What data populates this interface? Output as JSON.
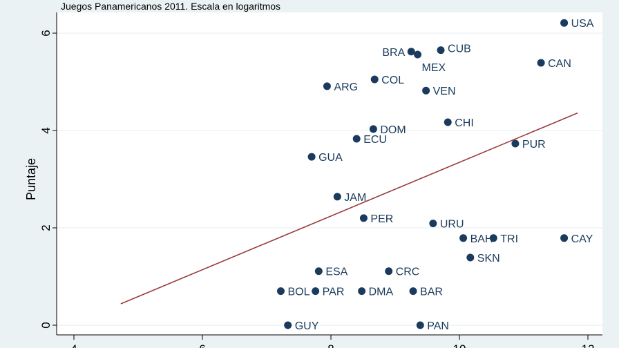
{
  "chart_data": {
    "type": "scatter",
    "title": "Juegos Panamericanos 2011. Escala en logaritmos",
    "ylabel": "Puntaje",
    "xlabel": "",
    "xlim": [
      3.7,
      12.25
    ],
    "ylim": [
      -0.2,
      6.7
    ],
    "xticks": [
      4,
      6,
      8,
      10,
      12
    ],
    "yticks": [
      0,
      2,
      4,
      6
    ],
    "grid": "horizontal",
    "colors": {
      "points": "#1a3b5d",
      "fit": "#9b3a3a",
      "background": "#eaf2f3",
      "plot": "#ffffff"
    },
    "points": [
      {
        "label": "USA",
        "x": 11.63,
        "y": 6.21
      },
      {
        "label": "CAN",
        "x": 11.27,
        "y": 5.39
      },
      {
        "label": "CUB",
        "x": 9.71,
        "y": 5.65
      },
      {
        "label": "BRA",
        "x": 9.25,
        "y": 5.62
      },
      {
        "label": "MEX",
        "x": 9.35,
        "y": 5.56
      },
      {
        "label": "COL",
        "x": 8.68,
        "y": 5.05
      },
      {
        "label": "VEN",
        "x": 9.48,
        "y": 4.82
      },
      {
        "label": "ARG",
        "x": 7.94,
        "y": 4.91
      },
      {
        "label": "CHI",
        "x": 9.82,
        "y": 4.17
      },
      {
        "label": "DOM",
        "x": 8.66,
        "y": 4.03
      },
      {
        "label": "ECU",
        "x": 8.4,
        "y": 3.83
      },
      {
        "label": "PUR",
        "x": 10.87,
        "y": 3.73
      },
      {
        "label": "GUA",
        "x": 7.7,
        "y": 3.46
      },
      {
        "label": "JAM",
        "x": 8.1,
        "y": 2.64
      },
      {
        "label": "PER",
        "x": 8.51,
        "y": 2.2
      },
      {
        "label": "URU",
        "x": 9.59,
        "y": 2.09
      },
      {
        "label": "BAH",
        "x": 10.06,
        "y": 1.79
      },
      {
        "label": "TRI",
        "x": 10.53,
        "y": 1.79
      },
      {
        "label": "CAY",
        "x": 11.63,
        "y": 1.79
      },
      {
        "label": "SKN",
        "x": 10.17,
        "y": 1.39
      },
      {
        "label": "ESA",
        "x": 7.81,
        "y": 1.11
      },
      {
        "label": "CRC",
        "x": 8.9,
        "y": 1.11
      },
      {
        "label": "BOL",
        "x": 7.22,
        "y": 0.7
      },
      {
        "label": "PAR",
        "x": 7.76,
        "y": 0.7
      },
      {
        "label": "DMA",
        "x": 8.48,
        "y": 0.7
      },
      {
        "label": "BAR",
        "x": 9.28,
        "y": 0.7
      },
      {
        "label": "GUY",
        "x": 7.33,
        "y": 0
      },
      {
        "label": "PAN",
        "x": 9.39,
        "y": 0
      }
    ],
    "fit_line": {
      "x": [
        4.73,
        11.84
      ],
      "y": [
        0.44,
        4.36
      ]
    }
  }
}
